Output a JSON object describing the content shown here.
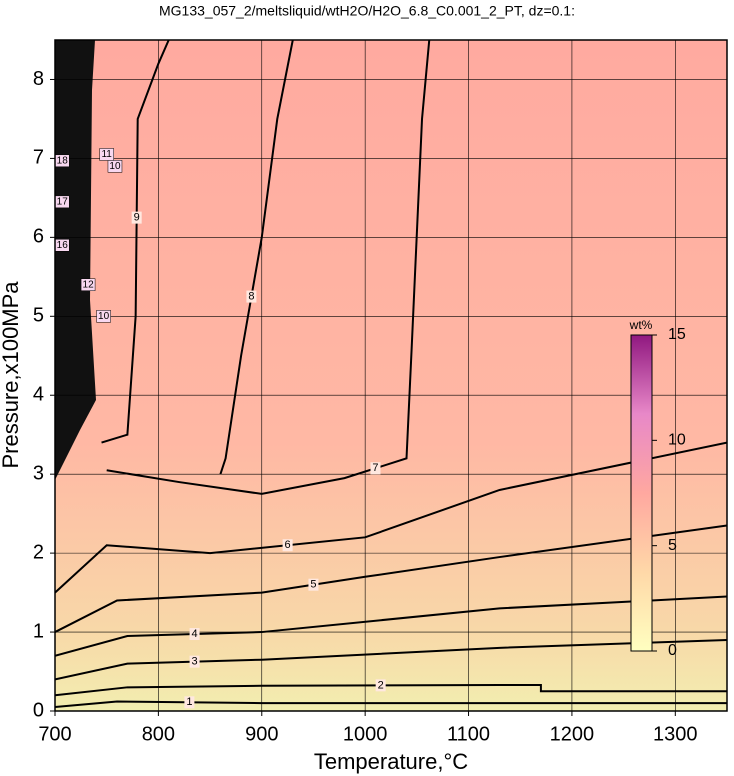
{
  "chart_data": {
    "type": "contour",
    "title": "MG133_057_2/meltsliquid/wtH2O/H2O_6.8_C0.001_2_PT, dz=0.1:",
    "x_label": "Temperature,°C",
    "y_label": "Pressure,x100MPa",
    "xlim": [
      700,
      1350
    ],
    "ylim": [
      0,
      8.5
    ],
    "xticks": [
      700,
      800,
      900,
      1000,
      1100,
      1200,
      1300
    ],
    "yticks": [
      0,
      1,
      2,
      3,
      4,
      5,
      6,
      7,
      8
    ],
    "grid": true,
    "contours": [
      {
        "level": 1,
        "x": [
          700,
          760,
          900,
          1130,
          1350
        ],
        "y": [
          0.05,
          0.12,
          0.1,
          0.1,
          0.1
        ]
      },
      {
        "level": 2,
        "x": [
          700,
          770,
          900,
          1130,
          1170,
          1170,
          1350
        ],
        "y": [
          0.2,
          0.3,
          0.32,
          0.33,
          0.33,
          0.25,
          0.25
        ]
      },
      {
        "level": 3,
        "x": [
          700,
          770,
          900,
          1130,
          1350
        ],
        "y": [
          0.4,
          0.6,
          0.65,
          0.8,
          0.9
        ]
      },
      {
        "level": 4,
        "x": [
          700,
          770,
          900,
          1130,
          1350
        ],
        "y": [
          0.7,
          0.95,
          1.0,
          1.3,
          1.45
        ]
      },
      {
        "level": 5,
        "x": [
          700,
          760,
          900,
          1000,
          1130,
          1350
        ],
        "y": [
          1.0,
          1.4,
          1.5,
          1.7,
          1.95,
          2.35
        ]
      },
      {
        "level": 6,
        "x": [
          700,
          750,
          850,
          1000,
          1130,
          1350
        ],
        "y": [
          1.5,
          2.1,
          2.0,
          2.2,
          2.8,
          3.4
        ]
      },
      {
        "level": 7,
        "x": [
          750,
          820,
          900,
          980,
          1040,
          1045,
          1055,
          1062
        ],
        "y": [
          3.05,
          2.9,
          2.75,
          2.95,
          3.2,
          4.6,
          7.5,
          8.5
        ]
      },
      {
        "level": 8,
        "x": [
          860,
          865,
          880,
          900,
          915,
          930
        ],
        "y": [
          3.0,
          3.2,
          4.5,
          6.0,
          7.5,
          8.5
        ]
      },
      {
        "level": 9,
        "x": [
          745,
          770,
          778,
          780,
          800,
          810
        ],
        "y": [
          3.4,
          3.5,
          5.0,
          7.5,
          8.2,
          8.5
        ]
      }
    ],
    "crowded_labels": [
      {
        "text": "10",
        "x": 758,
        "y": 6.9
      },
      {
        "text": "10",
        "x": 747,
        "y": 5.0
      },
      {
        "text": "11",
        "x": 750,
        "y": 7.05
      },
      {
        "text": "12",
        "x": 732,
        "y": 5.4
      },
      {
        "text": "16",
        "x": 707,
        "y": 5.9
      },
      {
        "text": "17",
        "x": 707,
        "y": 6.45
      },
      {
        "text": "18",
        "x": 707,
        "y": 6.97
      }
    ],
    "colorbar": {
      "label": "wt%",
      "lim": [
        0,
        15
      ],
      "ticks": [
        0,
        5,
        10,
        15
      ],
      "colors": [
        "#ffffc0",
        "#ffd8a8",
        "#ffa8a0",
        "#e888c8",
        "#901880"
      ]
    }
  }
}
